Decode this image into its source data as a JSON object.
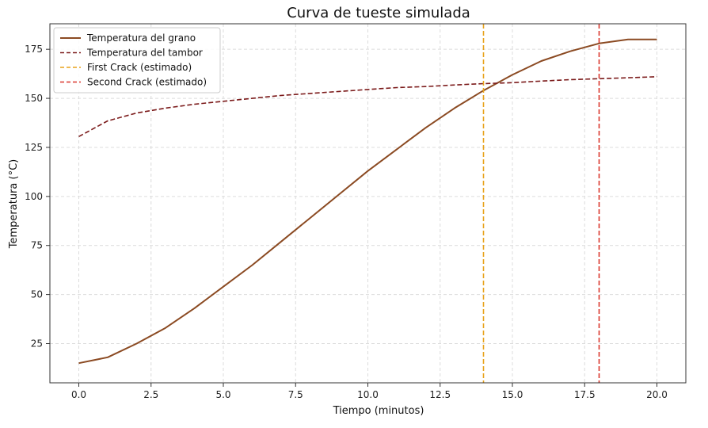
{
  "chart_data": {
    "type": "line",
    "title": "Curva de tueste simulada",
    "xlabel": "Tiempo (minutos)",
    "ylabel": "Temperatura (°C)",
    "xlim": [
      -1.0,
      21.0
    ],
    "ylim": [
      5,
      188
    ],
    "xticks": [
      0.0,
      2.5,
      5.0,
      7.5,
      10.0,
      12.5,
      15.0,
      17.5,
      20.0
    ],
    "xtick_labels": [
      "0.0",
      "2.5",
      "5.0",
      "7.5",
      "10.0",
      "12.5",
      "15.0",
      "17.5",
      "20.0"
    ],
    "yticks": [
      25,
      50,
      75,
      100,
      125,
      150,
      175
    ],
    "ytick_labels": [
      "25",
      "50",
      "75",
      "100",
      "125",
      "150",
      "175"
    ],
    "grid": true,
    "legend_position": "top-left",
    "series": [
      {
        "name": "Temperatura del grano",
        "style": "solid",
        "color": "#8B4A22",
        "x": [
          0,
          1,
          2,
          3,
          4,
          5,
          6,
          7,
          8,
          9,
          10,
          11,
          12,
          13,
          14,
          15,
          16,
          17,
          18,
          19,
          20
        ],
        "y": [
          15,
          18,
          25,
          33,
          43,
          54,
          65,
          77,
          89,
          101,
          113,
          124,
          135,
          145,
          154,
          162,
          169,
          174,
          178,
          180,
          180
        ]
      },
      {
        "name": "Temperatura del tambor",
        "style": "dashed",
        "color": "#7B1A1A",
        "x": [
          0,
          1,
          2,
          3,
          4,
          5,
          6,
          7,
          8,
          9,
          10,
          11,
          12,
          13,
          14,
          15,
          16,
          17,
          18,
          19,
          20
        ],
        "y": [
          130.5,
          138.5,
          142.5,
          145,
          147,
          148.5,
          150,
          151.5,
          152.5,
          153.5,
          154.5,
          155.5,
          156,
          156.8,
          157.5,
          158,
          158.8,
          159.5,
          160,
          160.5,
          161
        ]
      }
    ],
    "vlines": [
      {
        "name": "First Crack (estimado)",
        "x": 14.0,
        "color": "#E8A21A",
        "style": "dashed"
      },
      {
        "name": "Second Crack (estimado)",
        "x": 18.0,
        "color": "#D9362B",
        "style": "dashed"
      }
    ]
  }
}
